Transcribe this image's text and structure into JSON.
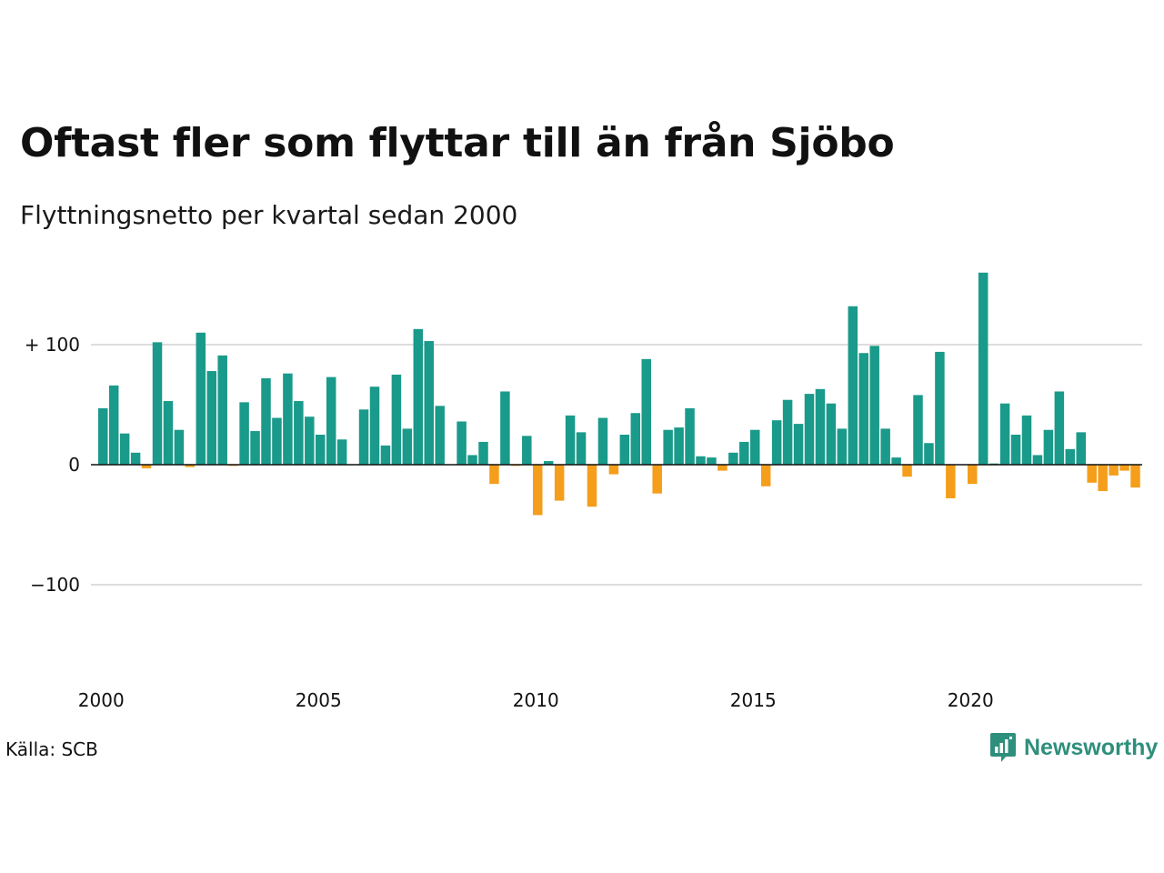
{
  "header": {
    "title": "Oftast fler som flyttar till än från Sjöbo",
    "subtitle": "Flyttningsnetto per kvartal sedan 2000"
  },
  "footer": {
    "source": "Källa: SCB",
    "brand": "Newsworthy"
  },
  "colors": {
    "positive": "#1a9a8a",
    "negative": "#f59e1b",
    "grid": "#dddddd",
    "zero_line": "#111111",
    "brand": "#2e8f7c"
  },
  "chart_data": {
    "type": "bar",
    "title": "Oftast fler som flyttar till än från Sjöbo",
    "subtitle": "Flyttningsnetto per kvartal sedan 2000",
    "xlabel": "",
    "ylabel": "",
    "y_ticks": [
      100,
      0,
      -100
    ],
    "y_tick_labels": [
      "+ 100",
      "0",
      "−100"
    ],
    "x_tick_labels": [
      "2000",
      "2005",
      "2010",
      "2015",
      "2020"
    ],
    "ylim": [
      -180,
      165
    ],
    "grid": true,
    "series": [
      {
        "values": [
          47,
          66,
          26,
          10,
          -3,
          102,
          53,
          29,
          -2,
          110,
          78,
          91,
          -1,
          52,
          28,
          72,
          39,
          76,
          53,
          40,
          25,
          73,
          21,
          0,
          46,
          65,
          16,
          75,
          30,
          113,
          103,
          49,
          0,
          36,
          8,
          19,
          -16,
          61,
          -1,
          24,
          -42,
          3,
          -30,
          41,
          27,
          -35,
          39,
          -8,
          25,
          43,
          88,
          -24,
          29,
          31,
          47,
          7,
          6,
          -5,
          10,
          19,
          29,
          -18,
          37,
          54,
          34,
          59,
          63,
          51,
          30,
          132,
          93,
          99,
          30,
          6,
          -10,
          58,
          18,
          94,
          -28,
          0,
          -16,
          160,
          1,
          51,
          25,
          41,
          8,
          29,
          61,
          13,
          27,
          -15,
          -22,
          -9,
          -5,
          -19
        ]
      }
    ]
  }
}
